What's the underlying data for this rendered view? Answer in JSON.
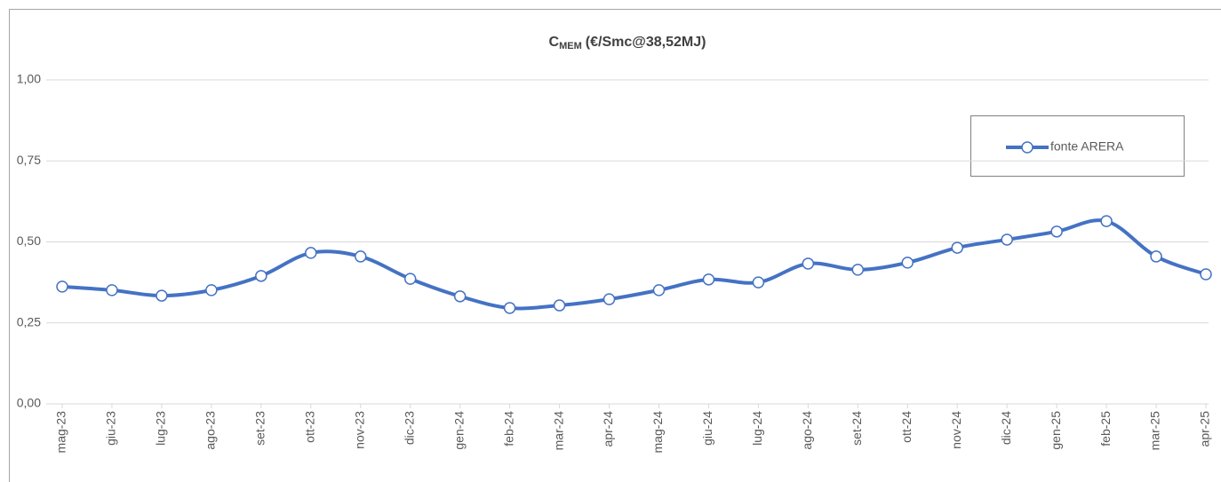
{
  "chart_data": {
    "type": "line",
    "title": {
      "text": "C",
      "subscript": "MEM",
      "suffix": "(€/Smc@38,52MJ)"
    },
    "categories": [
      "mag-23",
      "giu-23",
      "lug-23",
      "ago-23",
      "set-23",
      "ott-23",
      "nov-23",
      "dic-23",
      "gen-24",
      "feb-24",
      "mar-24",
      "apr-24",
      "mag-24",
      "giu-24",
      "lug-24",
      "ago-24",
      "set-24",
      "ott-24",
      "nov-24",
      "dic-24",
      "gen-25",
      "feb-25",
      "mar-25",
      "apr-25"
    ],
    "series": [
      {
        "name": "fonte ARERA",
        "color": "#4472c4",
        "values": [
          0.362,
          0.351,
          0.334,
          0.351,
          0.395,
          0.466,
          0.455,
          0.386,
          0.332,
          0.296,
          0.304,
          0.323,
          0.351,
          0.384,
          0.375,
          0.433,
          0.414,
          0.436,
          0.482,
          0.507,
          0.532,
          0.564,
          0.455,
          0.4
        ]
      }
    ],
    "ylim": [
      0,
      1
    ],
    "yticks": [
      {
        "value": 0,
        "label": "0,00"
      },
      {
        "value": 0.25,
        "label": "0,25"
      },
      {
        "value": 0.5,
        "label": "0,50"
      },
      {
        "value": 0.75,
        "label": "0,75"
      },
      {
        "value": 1,
        "label": "1,00"
      }
    ],
    "grid": true,
    "smooth": true,
    "legend": "upper right"
  }
}
